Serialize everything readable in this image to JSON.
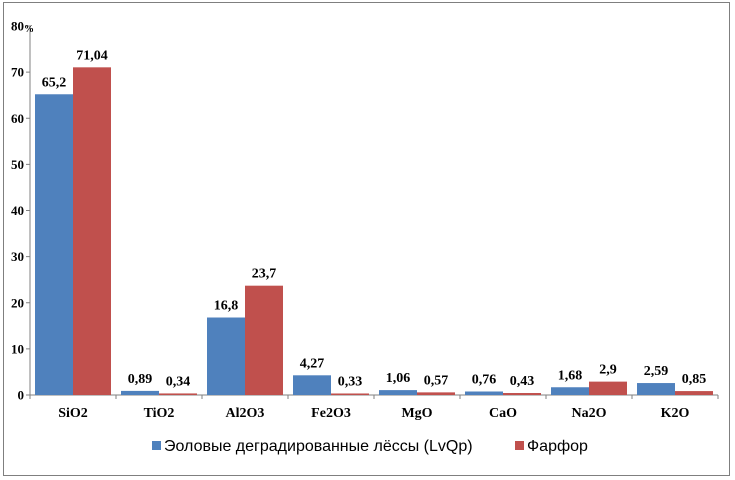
{
  "chart_data": {
    "type": "bar",
    "categories": [
      "SiO2",
      "TiO2",
      "Al2O3",
      "Fe2O3",
      "MgO",
      "CaO",
      "Na2O",
      "K2O"
    ],
    "series": [
      {
        "name": "Эоловые деградированные лёссы (LvQp)",
        "color": "#4f81bd",
        "values": [
          65.2,
          0.89,
          16.8,
          4.27,
          1.06,
          0.76,
          1.68,
          2.59
        ],
        "labels": [
          "65,2",
          "0,89",
          "16,8",
          "4,27",
          "1,06",
          "0,76",
          "1,68",
          "2,59"
        ]
      },
      {
        "name": "Фарфор",
        "color": "#c0504d",
        "values": [
          71.04,
          0.34,
          23.7,
          0.33,
          0.57,
          0.43,
          2.9,
          0.85
        ],
        "labels": [
          "71,04",
          "0,34",
          "23,7",
          "0,33",
          "0,57",
          "0,43",
          "2,9",
          "0,85"
        ]
      }
    ],
    "ylim": [
      0,
      80
    ],
    "yticks": [
      "0",
      "10",
      "20",
      "30",
      "40",
      "50",
      "60",
      "70",
      "80"
    ],
    "top_tick_unit": "%",
    "legend_position": "bottom",
    "grid": false
  }
}
